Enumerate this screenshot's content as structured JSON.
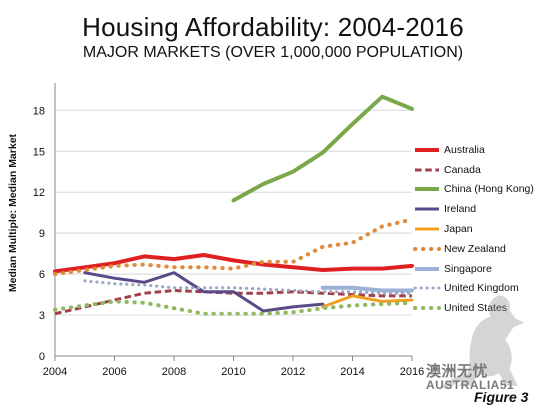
{
  "header": {
    "title": "Housing Affordability: 2004-2016",
    "subtitle": "MAJOR MARKETS (OVER 1,000,000 POPULATION)"
  },
  "watermark": {
    "main": "澳洲无忧",
    "small": "AUSTRALIA51"
  },
  "figure_label": "Figure 3",
  "chart_data": {
    "type": "line",
    "title": "Housing Affordability: 2004-2016",
    "subtitle": "MAJOR MARKETS (OVER 1,000,000 POPULATION)",
    "xlabel": "",
    "ylabel": "Median Multiple: Median Market",
    "x": [
      2004,
      2005,
      2006,
      2007,
      2008,
      2009,
      2010,
      2011,
      2012,
      2013,
      2014,
      2015,
      2016
    ],
    "xlim": [
      2004,
      2016
    ],
    "ylim": [
      0,
      20
    ],
    "xticks": [
      "2004",
      "2006",
      "2008",
      "2010",
      "2012",
      "2014",
      "2016"
    ],
    "yticks": [
      "0",
      "3",
      "6",
      "9",
      "12",
      "15",
      "18"
    ],
    "grid": "horizontal",
    "legend_position": "right",
    "series": [
      {
        "name": "Australia",
        "color": "#e02020",
        "style": "solid",
        "width": 4,
        "values": [
          6.2,
          6.5,
          6.8,
          7.3,
          7.1,
          7.4,
          7.0,
          6.7,
          6.5,
          6.3,
          6.4,
          6.4,
          6.6
        ]
      },
      {
        "name": "Canada",
        "color": "#a0404a",
        "style": "dashed",
        "width": 3,
        "values": [
          3.1,
          3.6,
          4.1,
          4.6,
          4.8,
          4.7,
          4.6,
          4.6,
          4.7,
          4.6,
          4.5,
          4.4,
          4.4
        ]
      },
      {
        "name": "China (Hong Kong)",
        "color": "#7aa84a",
        "style": "solid",
        "width": 4,
        "values": [
          null,
          null,
          null,
          null,
          null,
          null,
          11.4,
          12.6,
          13.5,
          14.9,
          17.0,
          19.0,
          18.1
        ]
      },
      {
        "name": "Ireland",
        "color": "#5a4a8a",
        "style": "solid",
        "width": 3,
        "values": [
          null,
          6.1,
          5.7,
          5.4,
          6.1,
          4.7,
          4.7,
          3.3,
          3.6,
          3.8,
          null,
          null,
          null
        ]
      },
      {
        "name": "Japan",
        "color": "#f0a020",
        "style": "solid",
        "width": 3,
        "values": [
          null,
          null,
          null,
          null,
          null,
          null,
          null,
          null,
          null,
          3.6,
          4.4,
          4.0,
          4.1
        ]
      },
      {
        "name": "New Zealand",
        "color": "#e08a3a",
        "style": "dotted",
        "width": 4,
        "values": [
          6.0,
          6.3,
          6.6,
          6.7,
          6.5,
          6.5,
          6.4,
          6.9,
          6.9,
          8.0,
          8.3,
          9.5,
          10.0
        ]
      },
      {
        "name": "Singapore",
        "color": "#9db0d8",
        "style": "solid",
        "width": 4,
        "values": [
          null,
          null,
          null,
          null,
          null,
          null,
          null,
          null,
          null,
          5.0,
          5.0,
          4.8,
          4.8
        ]
      },
      {
        "name": "United Kingdom",
        "color": "#9aa8c8",
        "style": "dotted",
        "width": 3,
        "values": [
          null,
          5.5,
          5.3,
          5.2,
          5.0,
          5.0,
          5.0,
          4.9,
          4.8,
          4.7,
          4.7,
          4.6,
          4.6
        ]
      },
      {
        "name": "United States",
        "color": "#8fb860",
        "style": "dotted",
        "width": 4,
        "values": [
          3.4,
          3.7,
          4.0,
          3.9,
          3.5,
          3.1,
          3.1,
          3.1,
          3.2,
          3.5,
          3.7,
          3.8,
          3.9
        ]
      }
    ]
  }
}
